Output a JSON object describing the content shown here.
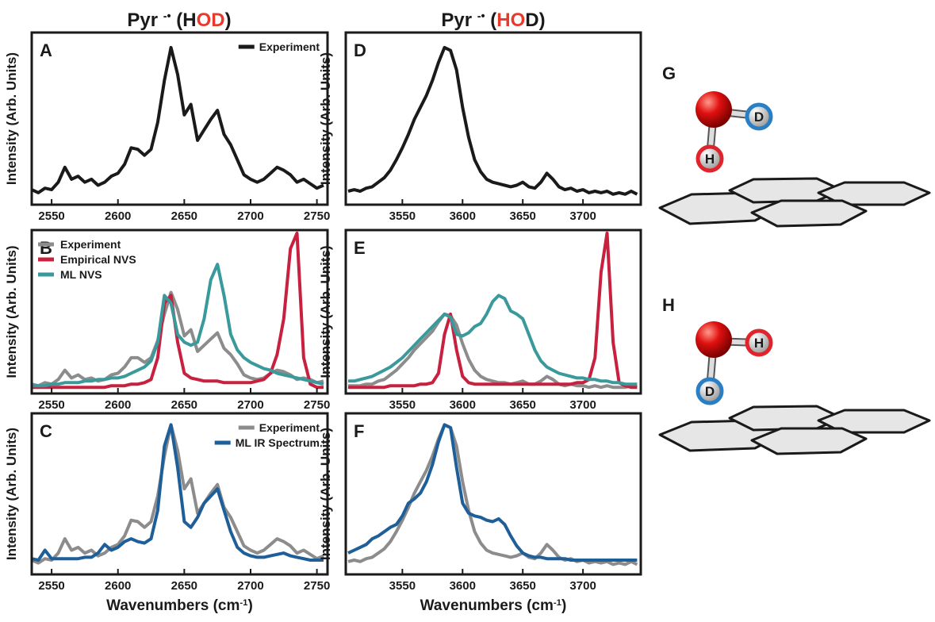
{
  "column_titles": [
    [
      {
        "text": "Pyr "
      },
      {
        "text": "-•",
        "sup": true
      },
      {
        "text": " (H"
      },
      {
        "text": "OD",
        "color": "#e8392b"
      },
      {
        "text": ")"
      }
    ],
    [
      {
        "text": "Pyr "
      },
      {
        "text": "-•",
        "sup": true
      },
      {
        "text": " ("
      },
      {
        "text": "HO",
        "color": "#e8392b"
      },
      {
        "text": "D)"
      }
    ]
  ],
  "molecules": [
    {
      "label": "G",
      "side_atom": "D",
      "lower_atom": "H"
    },
    {
      "label": "H",
      "side_atom": "H",
      "lower_atom": "D"
    }
  ],
  "chart_data": [
    {
      "type": "line",
      "panel_label": "A",
      "ylabel": "Intensity (Arb. Units)",
      "legend": "upper right",
      "xlim": [
        2535,
        2758
      ],
      "xticks": [
        2550,
        2600,
        2650,
        2700,
        2750
      ],
      "ylim": [
        -0.05,
        1.1
      ],
      "x": [
        2535,
        2540,
        2545,
        2550,
        2555,
        2560,
        2565,
        2570,
        2575,
        2580,
        2585,
        2590,
        2595,
        2600,
        2605,
        2610,
        2615,
        2620,
        2625,
        2630,
        2635,
        2640,
        2645,
        2650,
        2655,
        2660,
        2665,
        2670,
        2675,
        2680,
        2685,
        2690,
        2695,
        2700,
        2705,
        2710,
        2715,
        2720,
        2725,
        2730,
        2735,
        2740,
        2745,
        2750,
        2755
      ],
      "series": [
        {
          "name": "Experiment",
          "color": "#1a1a1a",
          "values": [
            0.05,
            0.03,
            0.06,
            0.05,
            0.1,
            0.2,
            0.12,
            0.14,
            0.1,
            0.12,
            0.08,
            0.1,
            0.14,
            0.16,
            0.22,
            0.33,
            0.32,
            0.28,
            0.32,
            0.5,
            0.78,
            1.0,
            0.82,
            0.55,
            0.62,
            0.38,
            0.45,
            0.52,
            0.58,
            0.42,
            0.35,
            0.25,
            0.15,
            0.12,
            0.1,
            0.12,
            0.16,
            0.2,
            0.18,
            0.15,
            0.1,
            0.12,
            0.09,
            0.06,
            0.08
          ]
        }
      ]
    },
    {
      "type": "line",
      "panel_label": "B",
      "ylabel": "Intensity (Arb. Units)",
      "legend": "upper left",
      "xlim": [
        2535,
        2758
      ],
      "xticks": [
        2550,
        2600,
        2650,
        2700,
        2750
      ],
      "ylim": [
        -0.03,
        1.02
      ],
      "x": [
        2535,
        2540,
        2545,
        2550,
        2555,
        2560,
        2565,
        2570,
        2575,
        2580,
        2585,
        2590,
        2595,
        2600,
        2605,
        2610,
        2615,
        2620,
        2625,
        2630,
        2635,
        2640,
        2645,
        2650,
        2655,
        2660,
        2665,
        2670,
        2675,
        2680,
        2685,
        2690,
        2695,
        2700,
        2705,
        2710,
        2715,
        2720,
        2725,
        2730,
        2735,
        2740,
        2745,
        2750,
        2755
      ],
      "series": [
        {
          "name": "Experiment",
          "color": "#8c8c8c",
          "values": [
            0.03,
            0.02,
            0.04,
            0.03,
            0.06,
            0.12,
            0.07,
            0.09,
            0.06,
            0.07,
            0.05,
            0.06,
            0.09,
            0.1,
            0.14,
            0.2,
            0.2,
            0.17,
            0.2,
            0.31,
            0.48,
            0.62,
            0.51,
            0.34,
            0.38,
            0.24,
            0.28,
            0.32,
            0.36,
            0.26,
            0.22,
            0.16,
            0.09,
            0.07,
            0.06,
            0.07,
            0.1,
            0.12,
            0.11,
            0.09,
            0.06,
            0.07,
            0.06,
            0.04,
            0.05
          ]
        },
        {
          "name": "Empirical NVS",
          "color": "#c8203f",
          "values": [
            0.01,
            0.01,
            0.01,
            0.01,
            0.01,
            0.01,
            0.01,
            0.01,
            0.01,
            0.01,
            0.01,
            0.01,
            0.02,
            0.02,
            0.02,
            0.03,
            0.03,
            0.04,
            0.06,
            0.2,
            0.55,
            0.6,
            0.3,
            0.1,
            0.07,
            0.06,
            0.05,
            0.05,
            0.05,
            0.04,
            0.04,
            0.04,
            0.04,
            0.04,
            0.05,
            0.06,
            0.1,
            0.22,
            0.45,
            0.9,
            1.0,
            0.2,
            0.03,
            0.01,
            0.01
          ]
        },
        {
          "name": "ML NVS",
          "color": "#3a9a9b",
          "values": [
            0.02,
            0.02,
            0.02,
            0.03,
            0.03,
            0.04,
            0.04,
            0.04,
            0.05,
            0.05,
            0.06,
            0.06,
            0.07,
            0.07,
            0.08,
            0.1,
            0.12,
            0.14,
            0.18,
            0.3,
            0.6,
            0.55,
            0.35,
            0.3,
            0.28,
            0.3,
            0.45,
            0.7,
            0.8,
            0.6,
            0.35,
            0.25,
            0.2,
            0.17,
            0.15,
            0.13,
            0.12,
            0.1,
            0.09,
            0.08,
            0.07,
            0.06,
            0.05,
            0.04,
            0.03
          ]
        }
      ]
    },
    {
      "type": "line",
      "panel_label": "C",
      "ylabel": "Intensity (Arb. Units)",
      "legend": "upper right",
      "xlabel": [
        {
          "text": "Wavenumbers (cm"
        },
        {
          "text": "-1",
          "sup": true
        },
        {
          "text": ")"
        }
      ],
      "xlim": [
        2535,
        2758
      ],
      "xticks": [
        2550,
        2600,
        2650,
        2700,
        2750
      ],
      "ylim": [
        -0.05,
        1.08
      ],
      "x": [
        2535,
        2540,
        2545,
        2550,
        2555,
        2560,
        2565,
        2570,
        2575,
        2580,
        2585,
        2590,
        2595,
        2600,
        2605,
        2610,
        2615,
        2620,
        2625,
        2630,
        2635,
        2640,
        2645,
        2650,
        2655,
        2660,
        2665,
        2670,
        2675,
        2680,
        2685,
        2690,
        2695,
        2700,
        2705,
        2710,
        2715,
        2720,
        2725,
        2730,
        2735,
        2740,
        2745,
        2750,
        2755
      ],
      "series": [
        {
          "name": "Experiment",
          "color": "#8c8c8c",
          "values": [
            0.05,
            0.03,
            0.06,
            0.05,
            0.1,
            0.2,
            0.12,
            0.14,
            0.1,
            0.12,
            0.08,
            0.1,
            0.14,
            0.16,
            0.22,
            0.33,
            0.32,
            0.28,
            0.32,
            0.5,
            0.78,
            1.0,
            0.82,
            0.55,
            0.62,
            0.38,
            0.45,
            0.52,
            0.58,
            0.42,
            0.35,
            0.25,
            0.15,
            0.12,
            0.1,
            0.12,
            0.16,
            0.2,
            0.18,
            0.15,
            0.1,
            0.12,
            0.09,
            0.06,
            0.08
          ]
        },
        {
          "name": "ML IR Spectrum",
          "color": "#1f5f99",
          "values": [
            0.06,
            0.05,
            0.12,
            0.06,
            0.06,
            0.06,
            0.06,
            0.06,
            0.07,
            0.07,
            0.1,
            0.16,
            0.12,
            0.14,
            0.18,
            0.2,
            0.18,
            0.17,
            0.2,
            0.4,
            0.85,
            1.0,
            0.7,
            0.32,
            0.28,
            0.35,
            0.45,
            0.5,
            0.55,
            0.4,
            0.25,
            0.14,
            0.1,
            0.08,
            0.07,
            0.07,
            0.08,
            0.09,
            0.1,
            0.08,
            0.07,
            0.06,
            0.05,
            0.05,
            0.05
          ]
        }
      ]
    },
    {
      "type": "line",
      "panel_label": "D",
      "ylabel": "Intensity (Arb. Units)",
      "xlim": [
        3503,
        3748
      ],
      "xticks": [
        3550,
        3600,
        3650,
        3700
      ],
      "ylim": [
        -0.05,
        1.1
      ],
      "x": [
        3505,
        3510,
        3515,
        3520,
        3525,
        3530,
        3535,
        3540,
        3545,
        3550,
        3555,
        3560,
        3565,
        3570,
        3575,
        3580,
        3585,
        3590,
        3595,
        3600,
        3605,
        3610,
        3615,
        3620,
        3625,
        3630,
        3635,
        3640,
        3645,
        3650,
        3655,
        3660,
        3665,
        3670,
        3675,
        3680,
        3685,
        3690,
        3695,
        3700,
        3705,
        3710,
        3715,
        3720,
        3725,
        3730,
        3735,
        3740,
        3745
      ],
      "series": [
        {
          "name": "Experiment",
          "color": "#1a1a1a",
          "values": [
            0.04,
            0.05,
            0.04,
            0.06,
            0.07,
            0.1,
            0.13,
            0.18,
            0.25,
            0.33,
            0.42,
            0.52,
            0.6,
            0.68,
            0.78,
            0.9,
            1.0,
            0.98,
            0.85,
            0.6,
            0.4,
            0.25,
            0.17,
            0.12,
            0.1,
            0.09,
            0.08,
            0.07,
            0.08,
            0.1,
            0.07,
            0.06,
            0.1,
            0.16,
            0.12,
            0.07,
            0.05,
            0.06,
            0.04,
            0.05,
            0.03,
            0.04,
            0.03,
            0.04,
            0.02,
            0.03,
            0.02,
            0.04,
            0.02
          ]
        }
      ]
    },
    {
      "type": "line",
      "panel_label": "E",
      "ylabel": "Intensity (Arb. Units)",
      "xlim": [
        3503,
        3748
      ],
      "xticks": [
        3550,
        3600,
        3650,
        3700
      ],
      "ylim": [
        -0.03,
        1.02
      ],
      "x": [
        3505,
        3510,
        3515,
        3520,
        3525,
        3530,
        3535,
        3540,
        3545,
        3550,
        3555,
        3560,
        3565,
        3570,
        3575,
        3580,
        3585,
        3590,
        3595,
        3600,
        3605,
        3610,
        3615,
        3620,
        3625,
        3630,
        3635,
        3640,
        3645,
        3650,
        3655,
        3660,
        3665,
        3670,
        3675,
        3680,
        3685,
        3690,
        3695,
        3700,
        3705,
        3710,
        3715,
        3720,
        3725,
        3730,
        3735,
        3740,
        3745
      ],
      "series": [
        {
          "name": "Experiment",
          "color": "#8c8c8c",
          "values": [
            0.02,
            0.02,
            0.02,
            0.03,
            0.03,
            0.05,
            0.06,
            0.09,
            0.12,
            0.16,
            0.2,
            0.25,
            0.29,
            0.33,
            0.37,
            0.43,
            0.48,
            0.47,
            0.41,
            0.29,
            0.19,
            0.12,
            0.08,
            0.06,
            0.05,
            0.04,
            0.04,
            0.03,
            0.04,
            0.05,
            0.03,
            0.03,
            0.05,
            0.08,
            0.06,
            0.03,
            0.02,
            0.03,
            0.02,
            0.02,
            0.01,
            0.02,
            0.01,
            0.02,
            0.01,
            0.01,
            0.01,
            0.02,
            0.01
          ]
        },
        {
          "name": "Empirical NVS",
          "color": "#c8203f",
          "values": [
            0.01,
            0.01,
            0.01,
            0.01,
            0.01,
            0.01,
            0.01,
            0.02,
            0.02,
            0.02,
            0.02,
            0.02,
            0.03,
            0.03,
            0.04,
            0.1,
            0.35,
            0.48,
            0.25,
            0.08,
            0.04,
            0.03,
            0.03,
            0.03,
            0.03,
            0.03,
            0.03,
            0.03,
            0.03,
            0.03,
            0.03,
            0.03,
            0.03,
            0.03,
            0.03,
            0.03,
            0.03,
            0.03,
            0.04,
            0.04,
            0.06,
            0.2,
            0.75,
            1.0,
            0.3,
            0.04,
            0.02,
            0.01,
            0.01
          ]
        },
        {
          "name": "ML NVS",
          "color": "#3a9a9b",
          "values": [
            0.05,
            0.05,
            0.06,
            0.07,
            0.08,
            0.1,
            0.12,
            0.14,
            0.17,
            0.2,
            0.24,
            0.28,
            0.32,
            0.36,
            0.4,
            0.44,
            0.48,
            0.46,
            0.35,
            0.34,
            0.36,
            0.4,
            0.42,
            0.48,
            0.56,
            0.6,
            0.58,
            0.5,
            0.48,
            0.45,
            0.35,
            0.25,
            0.18,
            0.14,
            0.12,
            0.1,
            0.09,
            0.08,
            0.07,
            0.07,
            0.06,
            0.06,
            0.05,
            0.05,
            0.04,
            0.04,
            0.03,
            0.03,
            0.03
          ]
        }
      ]
    },
    {
      "type": "line",
      "panel_label": "F",
      "ylabel": "Intensity (Arb. Units)",
      "xlabel": [
        {
          "text": "Wavenumbers (cm"
        },
        {
          "text": "-1",
          "sup": true
        },
        {
          "text": ")"
        }
      ],
      "xlim": [
        3503,
        3748
      ],
      "xticks": [
        3550,
        3600,
        3650,
        3700
      ],
      "ylim": [
        -0.05,
        1.08
      ],
      "x": [
        3505,
        3510,
        3515,
        3520,
        3525,
        3530,
        3535,
        3540,
        3545,
        3550,
        3555,
        3560,
        3565,
        3570,
        3575,
        3580,
        3585,
        3590,
        3595,
        3600,
        3605,
        3610,
        3615,
        3620,
        3625,
        3630,
        3635,
        3640,
        3645,
        3650,
        3655,
        3660,
        3665,
        3670,
        3675,
        3680,
        3685,
        3690,
        3695,
        3700,
        3705,
        3710,
        3715,
        3720,
        3725,
        3730,
        3735,
        3740,
        3745
      ],
      "series": [
        {
          "name": "Experiment",
          "color": "#8c8c8c",
          "values": [
            0.04,
            0.05,
            0.04,
            0.06,
            0.07,
            0.1,
            0.13,
            0.18,
            0.25,
            0.33,
            0.42,
            0.52,
            0.6,
            0.68,
            0.78,
            0.9,
            1.0,
            0.98,
            0.85,
            0.6,
            0.4,
            0.25,
            0.17,
            0.12,
            0.1,
            0.09,
            0.08,
            0.07,
            0.08,
            0.1,
            0.07,
            0.06,
            0.1,
            0.16,
            0.12,
            0.07,
            0.05,
            0.06,
            0.04,
            0.05,
            0.03,
            0.04,
            0.03,
            0.04,
            0.02,
            0.03,
            0.02,
            0.04,
            0.02
          ]
        },
        {
          "name": "ML IR Spectrum",
          "color": "#1f5f99",
          "values": [
            0.1,
            0.12,
            0.14,
            0.16,
            0.2,
            0.22,
            0.25,
            0.28,
            0.3,
            0.36,
            0.45,
            0.48,
            0.52,
            0.6,
            0.72,
            0.88,
            1.0,
            0.98,
            0.7,
            0.45,
            0.38,
            0.36,
            0.35,
            0.33,
            0.32,
            0.34,
            0.3,
            0.22,
            0.15,
            0.1,
            0.08,
            0.07,
            0.07,
            0.06,
            0.06,
            0.06,
            0.06,
            0.05,
            0.05,
            0.05,
            0.05,
            0.05,
            0.05,
            0.05,
            0.05,
            0.05,
            0.05,
            0.05,
            0.05
          ]
        }
      ]
    }
  ]
}
